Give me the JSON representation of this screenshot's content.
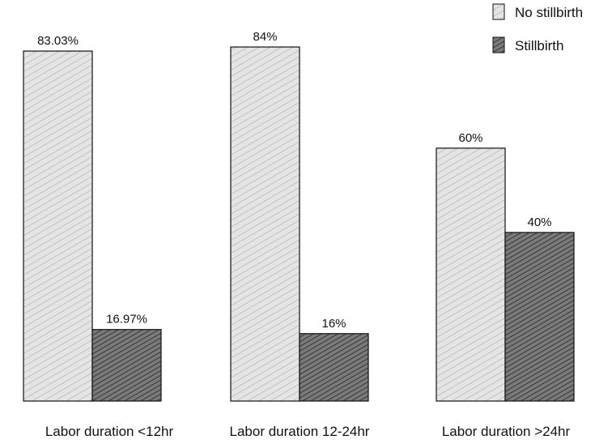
{
  "chart_data": {
    "type": "bar",
    "categories": [
      "Labor duration <12hr",
      "Labor duration 12-24hr",
      "Labor duration >24hr"
    ],
    "series": [
      {
        "name": "No stillbirth",
        "values": [
          83.03,
          84,
          60
        ],
        "labels": [
          "83.03%",
          "84%",
          "60%"
        ],
        "color": "#e2e2e2"
      },
      {
        "name": "Stillbirth",
        "values": [
          16.97,
          16,
          40
        ],
        "labels": [
          "16.97%",
          "16%",
          "40%"
        ],
        "color": "#5a5a5a"
      }
    ],
    "ylim": [
      0,
      100
    ],
    "grid": false,
    "legend_position": "top-right"
  }
}
